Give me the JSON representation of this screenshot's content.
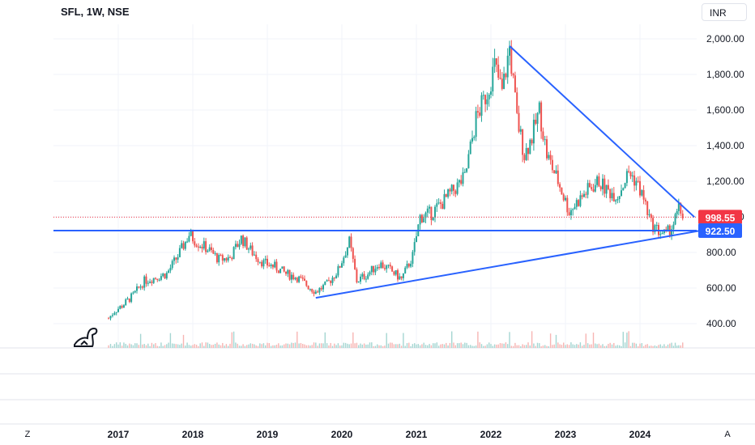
{
  "header": {
    "title": "SFL, 1W, NSE",
    "currency": "INR"
  },
  "controls": {
    "left_corner": "Z",
    "right_corner": "A"
  },
  "colors": {
    "up": "#26a69a",
    "down": "#ef5350",
    "trendline": "#2962ff",
    "price_line": "#f23645",
    "support_label": "#2962ff"
  },
  "chart_data": {
    "type": "candlestick",
    "title": "SFL, 1W, NSE",
    "ylim": [
      300,
      2050
    ],
    "y_ticks": [
      "400.00",
      "600.00",
      "800.00",
      "1,000.00",
      "1,200.00",
      "1,400.00",
      "1,600.00",
      "1,800.00",
      "2,000.00"
    ],
    "y_tick_values": [
      400,
      600,
      800,
      1000,
      1200,
      1400,
      1600,
      1800,
      2000
    ],
    "x_ticks": [
      "2017",
      "2018",
      "2019",
      "2020",
      "2021",
      "2022",
      "2023",
      "2024"
    ],
    "x_range": [
      2015.3,
      2024.8
    ],
    "grid": true,
    "series": [
      {
        "name": "",
        "points": [
          {
            "x": 2016.87,
            "close": 430
          },
          {
            "x": 2016.95,
            "close": 470
          },
          {
            "x": 2017.05,
            "close": 500
          },
          {
            "x": 2017.2,
            "close": 560
          },
          {
            "x": 2017.35,
            "close": 640
          },
          {
            "x": 2017.5,
            "close": 660
          },
          {
            "x": 2017.65,
            "close": 680
          },
          {
            "x": 2017.8,
            "close": 780
          },
          {
            "x": 2017.95,
            "close": 900
          },
          {
            "x": 2018.05,
            "close": 860
          },
          {
            "x": 2018.2,
            "close": 820
          },
          {
            "x": 2018.35,
            "close": 760
          },
          {
            "x": 2018.5,
            "close": 770
          },
          {
            "x": 2018.65,
            "close": 880
          },
          {
            "x": 2018.8,
            "close": 800
          },
          {
            "x": 2018.95,
            "close": 740
          },
          {
            "x": 2019.1,
            "close": 720
          },
          {
            "x": 2019.25,
            "close": 680
          },
          {
            "x": 2019.4,
            "close": 660
          },
          {
            "x": 2019.55,
            "close": 610
          },
          {
            "x": 2019.65,
            "close": 580
          },
          {
            "x": 2019.8,
            "close": 620
          },
          {
            "x": 2019.95,
            "close": 700
          },
          {
            "x": 2020.1,
            "close": 860
          },
          {
            "x": 2020.2,
            "close": 640
          },
          {
            "x": 2020.35,
            "close": 680
          },
          {
            "x": 2020.5,
            "close": 740
          },
          {
            "x": 2020.65,
            "close": 700
          },
          {
            "x": 2020.8,
            "close": 650
          },
          {
            "x": 2020.95,
            "close": 780
          },
          {
            "x": 2021.05,
            "close": 1000
          },
          {
            "x": 2021.2,
            "close": 1020
          },
          {
            "x": 2021.35,
            "close": 1080
          },
          {
            "x": 2021.5,
            "close": 1150
          },
          {
            "x": 2021.65,
            "close": 1220
          },
          {
            "x": 2021.8,
            "close": 1550
          },
          {
            "x": 2021.95,
            "close": 1700
          },
          {
            "x": 2022.05,
            "close": 1850
          },
          {
            "x": 2022.15,
            "close": 1700
          },
          {
            "x": 2022.25,
            "close": 1950
          },
          {
            "x": 2022.35,
            "close": 1550
          },
          {
            "x": 2022.45,
            "close": 1350
          },
          {
            "x": 2022.55,
            "close": 1450
          },
          {
            "x": 2022.65,
            "close": 1600
          },
          {
            "x": 2022.75,
            "close": 1350
          },
          {
            "x": 2022.9,
            "close": 1200
          },
          {
            "x": 2023.05,
            "close": 1030
          },
          {
            "x": 2023.15,
            "close": 1080
          },
          {
            "x": 2023.3,
            "close": 1150
          },
          {
            "x": 2023.45,
            "close": 1200
          },
          {
            "x": 2023.55,
            "close": 1150
          },
          {
            "x": 2023.7,
            "close": 1120
          },
          {
            "x": 2023.85,
            "close": 1250
          },
          {
            "x": 2023.95,
            "close": 1200
          },
          {
            "x": 2024.05,
            "close": 1100
          },
          {
            "x": 2024.15,
            "close": 960
          },
          {
            "x": 2024.25,
            "close": 920
          },
          {
            "x": 2024.35,
            "close": 900
          },
          {
            "x": 2024.45,
            "close": 960
          },
          {
            "x": 2024.52,
            "close": 1040
          },
          {
            "x": 2024.6,
            "close": 998.55
          }
        ]
      }
    ],
    "annotations": {
      "support_level": 922.5,
      "last_price": 998.55,
      "support_label": "922.50",
      "last_price_label": "998.55",
      "upper_trendline": {
        "from": {
          "x": 2022.25,
          "y": 1960
        },
        "to": {
          "x": 2024.6,
          "y": 1035
        }
      },
      "lower_trendline": {
        "from": {
          "x": 2019.65,
          "y": 545
        },
        "to": {
          "x": 2024.8,
          "y": 925
        }
      }
    }
  }
}
